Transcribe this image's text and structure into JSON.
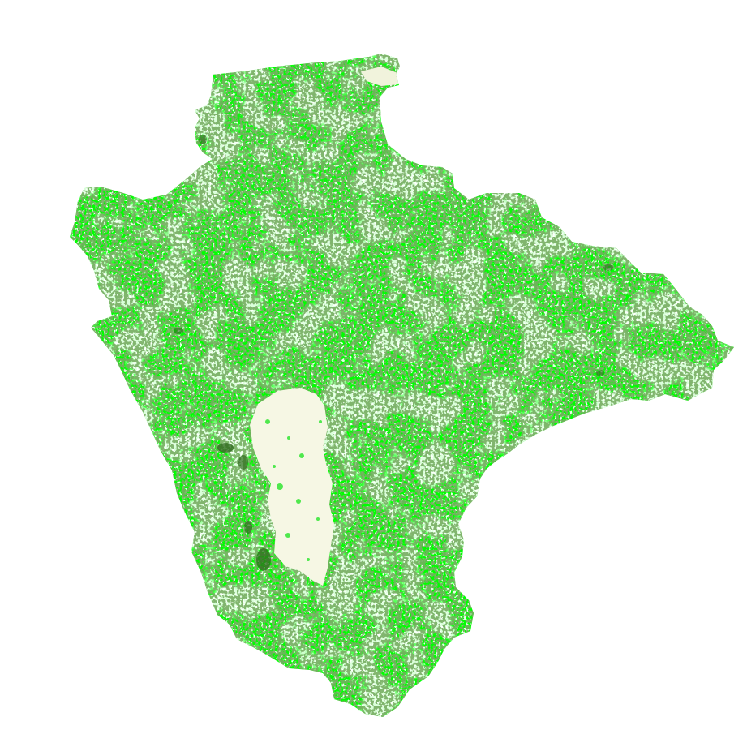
{
  "map": {
    "background_color": "#ffffff",
    "region_fill_color": "#00ff00",
    "land_cover_classes": [
      {
        "name": "bright-green-cover",
        "color": "#00ff00"
      },
      {
        "name": "mid-green-cover",
        "color": "#33e633"
      },
      {
        "name": "dark-green-cover",
        "color": "#2f6b1e"
      },
      {
        "name": "bare-white-cover",
        "color": "#ffffff"
      },
      {
        "name": "upland-pale-cover",
        "color": "#f6f7e4"
      }
    ]
  }
}
